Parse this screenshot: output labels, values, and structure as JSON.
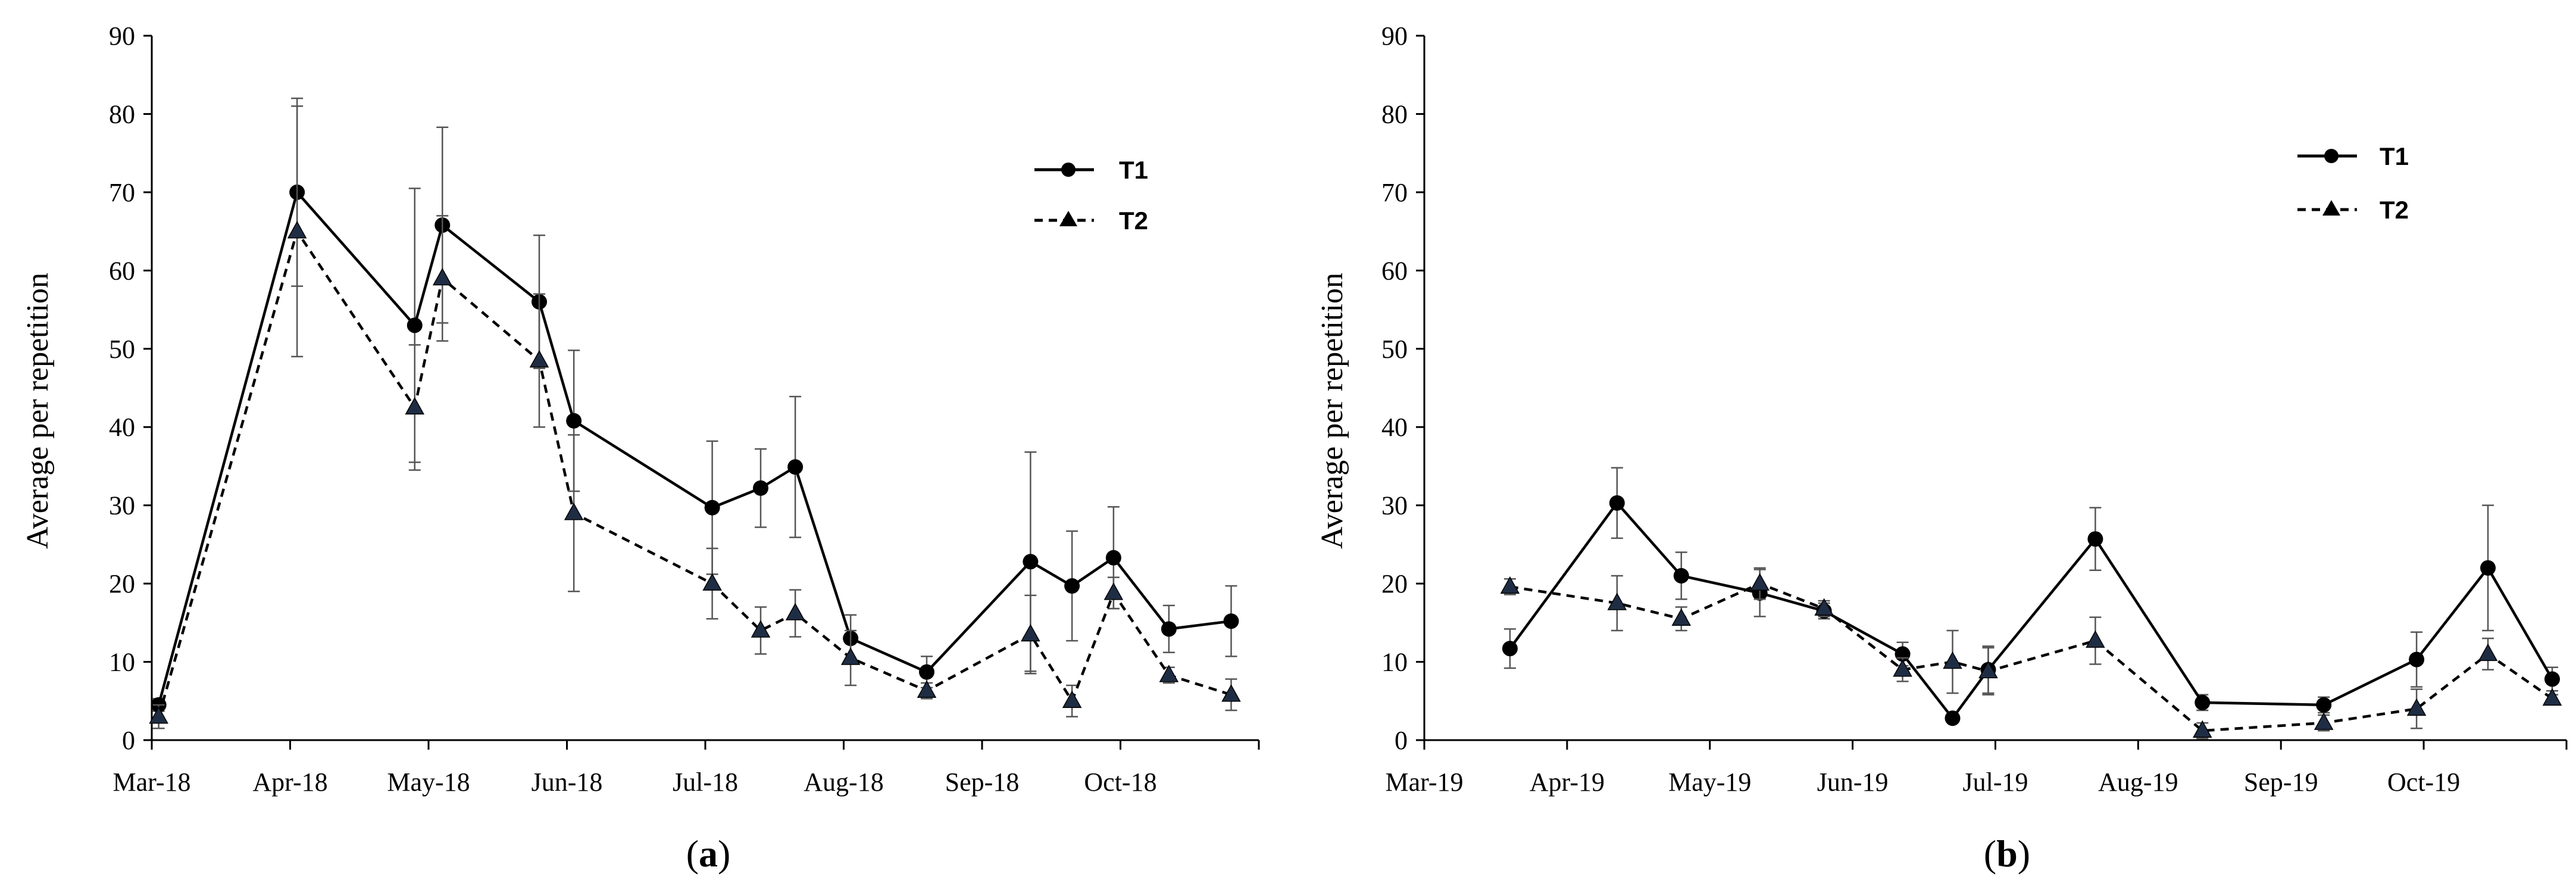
{
  "chart_data": [
    {
      "type": "line",
      "panel_label": "(a)",
      "caption": {
        "open": "(",
        "letter": "a",
        "close": ")"
      },
      "title": "",
      "xlabel": "",
      "ylabel": "Average per repetition",
      "ylim": [
        0,
        90
      ],
      "yticks": [
        0,
        10,
        20,
        30,
        40,
        50,
        60,
        70,
        80,
        90
      ],
      "xlim": [
        0,
        8
      ],
      "xtick_labels": [
        "Mar-18",
        "Apr-18",
        "May-18",
        "Jun-18",
        "Jul-18",
        "Aug-18",
        "Sep-18",
        "Oct-18"
      ],
      "legend": "top-right",
      "series": [
        {
          "name": "T1",
          "marker": "circle",
          "line": "solid",
          "x": [
            0.05,
            1.05,
            1.9,
            2.1,
            2.8,
            3.05,
            4.05,
            4.4,
            4.65,
            5.05,
            5.6,
            6.35,
            6.65,
            6.95,
            7.35,
            7.8
          ],
          "values": [
            4.5,
            70.0,
            53.0,
            65.8,
            56.0,
            40.8,
            29.7,
            32.2,
            34.9,
            13.0,
            8.7,
            22.8,
            19.7,
            23.3,
            14.2,
            15.2
          ],
          "error": [
            0.8,
            12.0,
            17.5,
            12.5,
            8.5,
            9.0,
            8.5,
            5.0,
            9.0,
            3.0,
            2.0,
            14.0,
            7.0,
            6.5,
            3.0,
            4.5
          ]
        },
        {
          "name": "T2",
          "marker": "triangle",
          "line": "dashed",
          "x": [
            0.05,
            1.05,
            1.9,
            2.1,
            2.8,
            3.05,
            4.05,
            4.4,
            4.65,
            5.05,
            5.6,
            6.35,
            6.65,
            6.95,
            7.35,
            7.8
          ],
          "values": [
            3.0,
            65.0,
            42.5,
            59.0,
            48.5,
            29.0,
            20.0,
            14.0,
            16.2,
            10.5,
            6.3,
            13.5,
            5.0,
            18.8,
            8.3,
            5.8
          ],
          "error": [
            1.5,
            16.0,
            8.0,
            8.0,
            8.5,
            10.0,
            4.5,
            3.0,
            3.0,
            3.5,
            1.0,
            5.0,
            2.0,
            2.0,
            1.0,
            2.0
          ]
        }
      ]
    },
    {
      "type": "line",
      "panel_label": "(b)",
      "caption": {
        "open": "(",
        "letter": "b",
        "close": ")"
      },
      "title": "",
      "xlabel": "",
      "ylabel": "Average per repetition",
      "ylim": [
        0,
        90
      ],
      "yticks": [
        0,
        10,
        20,
        30,
        40,
        50,
        60,
        70,
        80,
        90
      ],
      "xlim": [
        0,
        8
      ],
      "xtick_labels": [
        "Mar-19",
        "Apr-19",
        "May-19",
        "Jun-19",
        "Jul-19",
        "Aug-19",
        "Sep-19",
        "Oct-19"
      ],
      "legend": "top-right",
      "series": [
        {
          "name": "T1",
          "marker": "circle",
          "line": "solid",
          "x": [
            0.6,
            1.35,
            1.8,
            2.35,
            2.8,
            3.35,
            3.7,
            3.95,
            4.7,
            5.45,
            6.3,
            6.95,
            7.45,
            7.9
          ],
          "values": [
            11.7,
            30.3,
            21.0,
            18.8,
            16.5,
            11.0,
            2.8,
            9.0,
            25.7,
            4.8,
            4.5,
            10.3,
            22.0,
            7.8
          ],
          "error": [
            2.5,
            4.5,
            3.0,
            3.0,
            1.0,
            1.5,
            0.5,
            3.0,
            4.0,
            1.0,
            1.0,
            3.5,
            8.0,
            1.5
          ]
        },
        {
          "name": "T2",
          "marker": "triangle",
          "line": "dashed",
          "x": [
            0.6,
            1.35,
            1.8,
            2.35,
            2.8,
            3.35,
            3.7,
            3.95,
            4.7,
            5.45,
            6.3,
            6.95,
            7.45,
            7.9
          ],
          "values": [
            19.6,
            17.5,
            15.5,
            20.0,
            16.8,
            9.0,
            10.0,
            8.8,
            12.7,
            1.2,
            2.2,
            4.0,
            11.0,
            5.3
          ],
          "error": [
            1.0,
            3.5,
            1.5,
            2.0,
            1.0,
            1.5,
            4.0,
            3.0,
            3.0,
            1.0,
            1.0,
            2.5,
            2.0,
            0.5
          ]
        }
      ]
    }
  ]
}
